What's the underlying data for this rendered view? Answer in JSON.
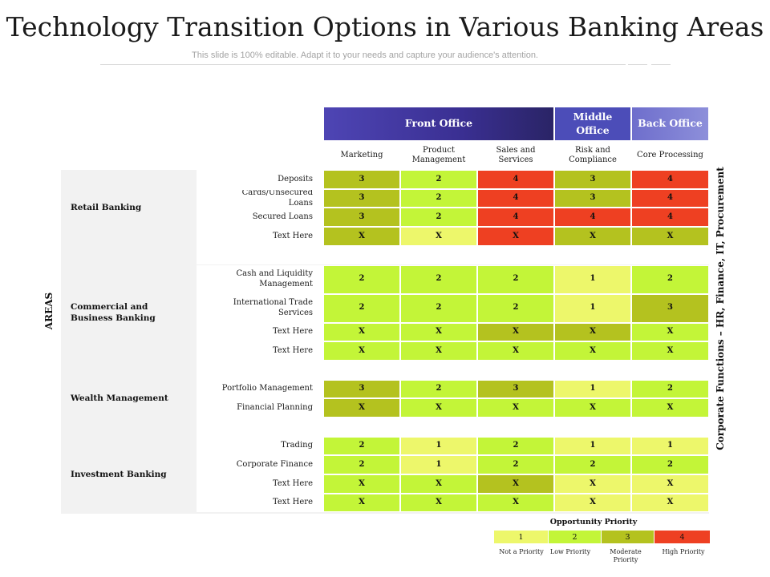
{
  "title": "Technology Transition Options in Various Banking Areas",
  "subtitle": "This slide is 100% editable. Adapt it to your needs and capture your audience's attention.",
  "colors": {
    "p1": "#EDF76B",
    "p2": "#C3F538",
    "p3": "#B4C21F",
    "p4": "#EE4022",
    "header_front": "#3A2F92",
    "header_middle": "#4C4DB8",
    "header_back": "#8D8FDA"
  },
  "table": {
    "left_label": "AREAS",
    "right_label": "Corporate Functions – HR, Finance, IT, Procurement",
    "group_headers": {
      "front": "Front Office",
      "middle": "Middle Office",
      "back": "Back Office"
    },
    "columns": [
      "Marketing",
      "Product Management",
      "Sales and Services",
      "Risk and Compliance",
      "Core Processing"
    ],
    "areas": [
      {
        "name": "Retail Banking",
        "rows": [
          {
            "label": "Deposits",
            "values": [
              "3",
              "2",
              "4",
              "3",
              "4"
            ]
          },
          {
            "label": "Cards/Unsecured Loans",
            "values": [
              "3",
              "2",
              "4",
              "3",
              "4"
            ]
          },
          {
            "label": "Secured Loans",
            "values": [
              "3",
              "2",
              "4",
              "4",
              "4"
            ]
          },
          {
            "label": "Text Here",
            "values": [
              "X",
              "X",
              "X",
              "X",
              "X"
            ]
          }
        ]
      },
      {
        "name": "Commercial and Business Banking",
        "rows": [
          {
            "label": "Cash and Liquidity Management",
            "values": [
              "2",
              "2",
              "2",
              "1",
              "2"
            ]
          },
          {
            "label": "International Trade Services",
            "values": [
              "2",
              "2",
              "2",
              "1",
              "3"
            ]
          },
          {
            "label": "Text Here",
            "values": [
              "X",
              "X",
              "X",
              "X",
              "X"
            ]
          },
          {
            "label": "Text Here",
            "values": [
              "X",
              "X",
              "X",
              "X",
              "X"
            ]
          }
        ]
      },
      {
        "name": "Wealth Management",
        "rows": [
          {
            "label": "Portfolio Management",
            "values": [
              "3",
              "2",
              "3",
              "1",
              "2"
            ]
          },
          {
            "label": "Financial Planning",
            "values": [
              "X",
              "X",
              "X",
              "X",
              "X"
            ]
          }
        ]
      },
      {
        "name": "Investment Banking",
        "rows": [
          {
            "label": "Trading",
            "values": [
              "2",
              "1",
              "2",
              "1",
              "1"
            ]
          },
          {
            "label": "Corporate Finance",
            "values": [
              "2",
              "1",
              "2",
              "2",
              "2"
            ]
          },
          {
            "label": "Text Here",
            "values": [
              "X",
              "X",
              "X",
              "X",
              "X"
            ]
          },
          {
            "label": "Text Here",
            "values": [
              "X",
              "X",
              "X",
              "X",
              "X"
            ]
          }
        ]
      }
    ],
    "cell_priorities": [
      [
        3,
        2,
        4,
        3,
        4
      ],
      [
        3,
        2,
        4,
        3,
        4
      ],
      [
        3,
        2,
        4,
        4,
        4
      ],
      [
        3,
        1,
        4,
        3,
        3
      ],
      [
        2,
        2,
        2,
        1,
        2
      ],
      [
        2,
        2,
        2,
        1,
        3
      ],
      [
        2,
        2,
        3,
        3,
        2
      ],
      [
        2,
        2,
        2,
        2,
        2
      ],
      [
        3,
        2,
        3,
        1,
        2
      ],
      [
        3,
        2,
        2,
        2,
        2
      ],
      [
        2,
        1,
        2,
        1,
        1
      ],
      [
        2,
        1,
        2,
        2,
        2
      ],
      [
        2,
        2,
        3,
        1,
        1
      ],
      [
        2,
        2,
        2,
        1,
        1
      ]
    ]
  },
  "legend": {
    "title": "Opportunity Priority",
    "items": [
      {
        "value": "1",
        "label": "Not a Priority"
      },
      {
        "value": "2",
        "label": "Low Priority"
      },
      {
        "value": "3",
        "label": "Moderate Priority"
      },
      {
        "value": "4",
        "label": "High Priority"
      }
    ]
  }
}
